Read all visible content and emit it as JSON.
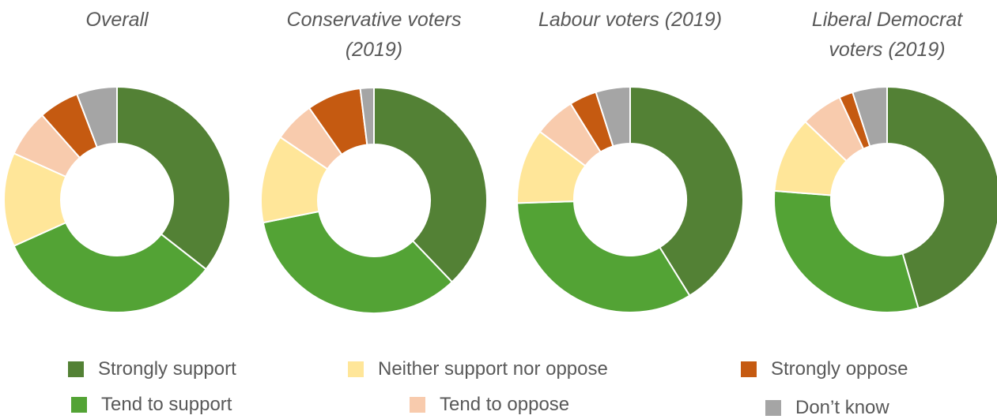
{
  "chart_data": [
    {
      "type": "pie",
      "title": "Overall",
      "categories": [
        "Strongly support",
        "Tend to support",
        "Neither support nor oppose",
        "Tend to oppose",
        "Strongly oppose",
        "Don't know"
      ],
      "values": [
        37,
        34,
        14,
        7,
        6,
        6
      ]
    },
    {
      "type": "pie",
      "title": "Conservative voters (2019)",
      "categories": [
        "Strongly support",
        "Tend to support",
        "Neither support nor oppose",
        "Tend to oppose",
        "Strongly oppose",
        "Don't know"
      ],
      "values": [
        39,
        35,
        13,
        6,
        8,
        2
      ]
    },
    {
      "type": "pie",
      "title": "Labour voters (2019)",
      "categories": [
        "Strongly support",
        "Tend to support",
        "Neither support nor oppose",
        "Tend to oppose",
        "Strongly oppose",
        "Don't know"
      ],
      "values": [
        42,
        34,
        11,
        6,
        4,
        5
      ]
    },
    {
      "type": "pie",
      "title": "Liberal Democrat voters (2019)",
      "categories": [
        "Strongly support",
        "Tend to support",
        "Neither support nor oppose",
        "Tend to oppose",
        "Strongly oppose",
        "Don't know"
      ],
      "values": [
        46,
        31,
        11,
        6,
        2,
        5
      ]
    }
  ],
  "legend": {
    "items": [
      {
        "label": "Strongly support",
        "color": "#538135"
      },
      {
        "label": "Tend to support",
        "color": "#53a335"
      },
      {
        "label": "Neither support nor oppose",
        "color": "#ffe699"
      },
      {
        "label": "Tend to oppose",
        "color": "#f8cbad"
      },
      {
        "label": "Strongly oppose",
        "color": "#c55a11"
      },
      {
        "label": "Don’t know",
        "color": "#a5a5a5"
      }
    ]
  },
  "colors": [
    "#538135",
    "#53a335",
    "#ffe699",
    "#f8cbad",
    "#c55a11",
    "#a5a5a5"
  ]
}
